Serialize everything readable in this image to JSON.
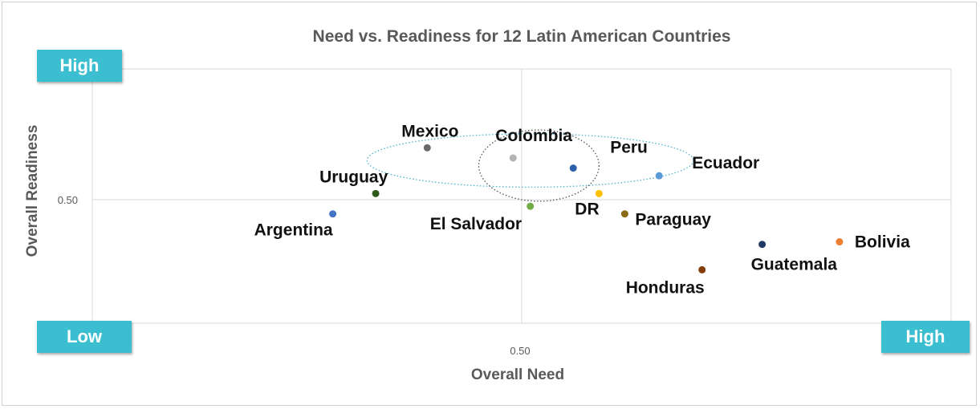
{
  "chart_data": {
    "type": "scatter",
    "title": "Need vs. Readiness  for 12 Latin American Countries",
    "xlabel": "Overall Need",
    "ylabel": "Overall Readiness",
    "x_tick_label": "0.50",
    "y_tick_label": "0.50",
    "xlim": [
      0.0,
      1.0
    ],
    "ylim": [
      0.0,
      1.0
    ],
    "grid": "center crosshair at 0.50",
    "corner_labels": {
      "y_high": "High",
      "x_low": "Low",
      "x_high": "High"
    },
    "points": [
      {
        "label": "Mexico",
        "x": 0.39,
        "y": 0.69,
        "color": "#6b6b6b"
      },
      {
        "label": "Colombia",
        "x": 0.49,
        "y": 0.65,
        "color": "#b4b4b4"
      },
      {
        "label": "Peru",
        "x": 0.56,
        "y": 0.61,
        "color": "#2e5fa8"
      },
      {
        "label": "Ecuador",
        "x": 0.66,
        "y": 0.58,
        "color": "#5b9bd5"
      },
      {
        "label": "Uruguay",
        "x": 0.33,
        "y": 0.51,
        "color": "#2f5a1c"
      },
      {
        "label": "DR",
        "x": 0.59,
        "y": 0.51,
        "color": "#ffc000"
      },
      {
        "label": "El Salvador",
        "x": 0.51,
        "y": 0.46,
        "color": "#70ad47"
      },
      {
        "label": "Paraguay",
        "x": 0.62,
        "y": 0.43,
        "color": "#8a6b12"
      },
      {
        "label": "Argentina",
        "x": 0.28,
        "y": 0.43,
        "color": "#4472c4"
      },
      {
        "label": "Bolivia",
        "x": 0.87,
        "y": 0.32,
        "color": "#ed7d31"
      },
      {
        "label": "Guatemala",
        "x": 0.78,
        "y": 0.31,
        "color": "#203864"
      },
      {
        "label": "Honduras",
        "x": 0.71,
        "y": 0.21,
        "color": "#843c0c"
      }
    ],
    "annotations": [
      {
        "shape": "ellipse",
        "style": "dotted",
        "color": "#4ab3cf",
        "center": [
          0.51,
          0.64
        ],
        "radii": [
          0.38,
          0.21
        ]
      },
      {
        "shape": "ellipse",
        "style": "dotted",
        "color": "#555555",
        "center": [
          0.52,
          0.62
        ],
        "radii": [
          0.14,
          0.28
        ]
      }
    ]
  }
}
